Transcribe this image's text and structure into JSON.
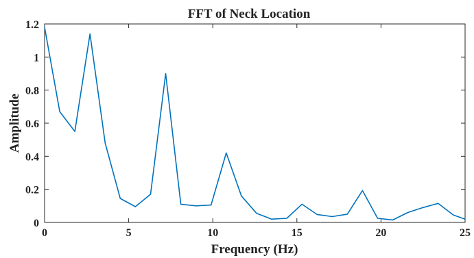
{
  "chart_data": {
    "type": "line",
    "title": "FFT of Neck Location",
    "xlabel": "Frequency (Hz)",
    "ylabel": "Amplitude",
    "xlim": [
      0,
      25
    ],
    "ylim": [
      0,
      1.2
    ],
    "xticks": [
      0,
      5,
      10,
      15,
      20,
      25
    ],
    "xtick_labels": [
      "0",
      "5",
      "10",
      "15",
      "20",
      "25"
    ],
    "yticks": [
      0,
      0.2,
      0.4,
      0.6,
      0.8,
      1,
      1.2
    ],
    "ytick_labels": [
      "0",
      "0.2",
      "0.4",
      "0.6",
      "0.8",
      "1",
      "1.2"
    ],
    "grid": false,
    "line_color": "#0072BD",
    "series": [
      {
        "x": [
          0,
          0.9,
          1.8,
          2.7,
          3.6,
          4.5,
          5.4,
          6.3,
          7.2,
          8.1,
          9.0,
          9.9,
          10.8,
          11.7,
          12.6,
          13.5,
          14.4,
          15.3,
          16.2,
          17.1,
          18.0,
          18.9,
          19.8,
          20.7,
          21.6,
          22.5,
          23.4,
          24.3,
          25.0
        ],
        "values": [
          1.18,
          0.67,
          0.55,
          1.14,
          0.48,
          0.145,
          0.095,
          0.17,
          0.9,
          0.11,
          0.1,
          0.105,
          0.42,
          0.16,
          0.055,
          0.02,
          0.025,
          0.11,
          0.048,
          0.035,
          0.05,
          0.193,
          0.025,
          0.015,
          0.06,
          0.09,
          0.115,
          0.045,
          0.02
        ]
      }
    ]
  }
}
